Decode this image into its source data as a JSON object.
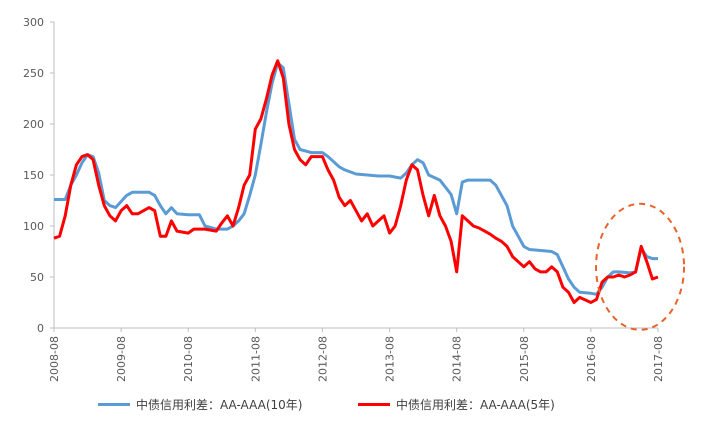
{
  "chart_data": {
    "type": "line",
    "title": "",
    "xlabel": "",
    "ylabel": "",
    "ylim": [
      0,
      300
    ],
    "yticks": [
      0,
      50,
      100,
      150,
      200,
      250,
      300
    ],
    "xlim": [
      "2008-08",
      "2017-08"
    ],
    "xticks": [
      "2008-08",
      "2009-08",
      "2010-08",
      "2011-08",
      "2012-08",
      "2013-08",
      "2014-08",
      "2015-08",
      "2016-08",
      "2017-08"
    ],
    "grid": false,
    "legend_position": "bottom",
    "annotation": "dashed-red-ellipse-around-2016-08-to-2017-08",
    "series": [
      {
        "name": "中债信用利差：AA-AAA(10年)",
        "color": "#5B9BD5",
        "points": [
          [
            "2008-08",
            126
          ],
          [
            "2008-10",
            126
          ],
          [
            "2008-11",
            140
          ],
          [
            "2008-12",
            150
          ],
          [
            "2009-01",
            162
          ],
          [
            "2009-02",
            170
          ],
          [
            "2009-03",
            168
          ],
          [
            "2009-04",
            152
          ],
          [
            "2009-05",
            125
          ],
          [
            "2009-06",
            120
          ],
          [
            "2009-07",
            118
          ],
          [
            "2009-08",
            124
          ],
          [
            "2009-09",
            130
          ],
          [
            "2009-10",
            133
          ],
          [
            "2009-11",
            133
          ],
          [
            "2010-01",
            133
          ],
          [
            "2010-02",
            130
          ],
          [
            "2010-03",
            120
          ],
          [
            "2010-04",
            112
          ],
          [
            "2010-05",
            118
          ],
          [
            "2010-06",
            112
          ],
          [
            "2010-08",
            111
          ],
          [
            "2010-10",
            111
          ],
          [
            "2010-11",
            100
          ],
          [
            "2011-01",
            97
          ],
          [
            "2011-03",
            97
          ],
          [
            "2011-04",
            100
          ],
          [
            "2011-05",
            105
          ],
          [
            "2011-06",
            112
          ],
          [
            "2011-07",
            130
          ],
          [
            "2011-08",
            150
          ],
          [
            "2011-09",
            180
          ],
          [
            "2011-10",
            212
          ],
          [
            "2011-11",
            240
          ],
          [
            "2011-12",
            260
          ],
          [
            "2012-01",
            255
          ],
          [
            "2012-02",
            220
          ],
          [
            "2012-03",
            185
          ],
          [
            "2012-04",
            175
          ],
          [
            "2012-06",
            172
          ],
          [
            "2012-08",
            172
          ],
          [
            "2012-09",
            168
          ],
          [
            "2012-10",
            163
          ],
          [
            "2012-11",
            158
          ],
          [
            "2012-12",
            155
          ],
          [
            "2013-02",
            151
          ],
          [
            "2013-04",
            150
          ],
          [
            "2013-06",
            149
          ],
          [
            "2013-08",
            149
          ],
          [
            "2013-10",
            147
          ],
          [
            "2013-11",
            152
          ],
          [
            "2013-12",
            160
          ],
          [
            "2014-01",
            165
          ],
          [
            "2014-02",
            162
          ],
          [
            "2014-03",
            150
          ],
          [
            "2014-05",
            145
          ],
          [
            "2014-07",
            131
          ],
          [
            "2014-08",
            112
          ],
          [
            "2014-09",
            143
          ],
          [
            "2014-10",
            145
          ],
          [
            "2014-12",
            145
          ],
          [
            "2015-02",
            145
          ],
          [
            "2015-03",
            140
          ],
          [
            "2015-05",
            120
          ],
          [
            "2015-06",
            100
          ],
          [
            "2015-07",
            90
          ],
          [
            "2015-08",
            80
          ],
          [
            "2015-09",
            77
          ],
          [
            "2015-11",
            76
          ],
          [
            "2016-01",
            75
          ],
          [
            "2016-02",
            72
          ],
          [
            "2016-03",
            60
          ],
          [
            "2016-04",
            48
          ],
          [
            "2016-05",
            40
          ],
          [
            "2016-06",
            35
          ],
          [
            "2016-08",
            34
          ],
          [
            "2016-09",
            33
          ],
          [
            "2016-10",
            40
          ],
          [
            "2016-11",
            50
          ],
          [
            "2016-12",
            55
          ],
          [
            "2017-01",
            55
          ],
          [
            "2017-03",
            54
          ],
          [
            "2017-04",
            55
          ],
          [
            "2017-05",
            78
          ],
          [
            "2017-06",
            70
          ],
          [
            "2017-07",
            68
          ],
          [
            "2017-08",
            68
          ]
        ]
      },
      {
        "name": "中债信用利差：AA-AAA(5年)",
        "color": "#FF0000",
        "points": [
          [
            "2008-08",
            88
          ],
          [
            "2008-09",
            90
          ],
          [
            "2008-10",
            110
          ],
          [
            "2008-11",
            140
          ],
          [
            "2008-12",
            160
          ],
          [
            "2009-01",
            168
          ],
          [
            "2009-02",
            170
          ],
          [
            "2009-03",
            165
          ],
          [
            "2009-04",
            140
          ],
          [
            "2009-05",
            120
          ],
          [
            "2009-06",
            110
          ],
          [
            "2009-07",
            105
          ],
          [
            "2009-08",
            115
          ],
          [
            "2009-09",
            120
          ],
          [
            "2009-10",
            112
          ],
          [
            "2009-11",
            112
          ],
          [
            "2010-01",
            118
          ],
          [
            "2010-02",
            115
          ],
          [
            "2010-03",
            90
          ],
          [
            "2010-04",
            90
          ],
          [
            "2010-05",
            105
          ],
          [
            "2010-06",
            95
          ],
          [
            "2010-08",
            93
          ],
          [
            "2010-09",
            97
          ],
          [
            "2010-10",
            97
          ],
          [
            "2010-11",
            97
          ],
          [
            "2011-01",
            95
          ],
          [
            "2011-02",
            103
          ],
          [
            "2011-03",
            110
          ],
          [
            "2011-04",
            100
          ],
          [
            "2011-05",
            118
          ],
          [
            "2011-06",
            140
          ],
          [
            "2011-07",
            150
          ],
          [
            "2011-08",
            195
          ],
          [
            "2011-09",
            205
          ],
          [
            "2011-10",
            225
          ],
          [
            "2011-11",
            248
          ],
          [
            "2011-12",
            262
          ],
          [
            "2012-01",
            245
          ],
          [
            "2012-02",
            200
          ],
          [
            "2012-03",
            175
          ],
          [
            "2012-04",
            165
          ],
          [
            "2012-05",
            160
          ],
          [
            "2012-06",
            168
          ],
          [
            "2012-08",
            168
          ],
          [
            "2012-09",
            155
          ],
          [
            "2012-10",
            145
          ],
          [
            "2012-11",
            128
          ],
          [
            "2012-12",
            120
          ],
          [
            "2013-01",
            125
          ],
          [
            "2013-02",
            115
          ],
          [
            "2013-03",
            105
          ],
          [
            "2013-04",
            112
          ],
          [
            "2013-05",
            100
          ],
          [
            "2013-06",
            105
          ],
          [
            "2013-07",
            110
          ],
          [
            "2013-08",
            93
          ],
          [
            "2013-09",
            100
          ],
          [
            "2013-10",
            120
          ],
          [
            "2013-11",
            145
          ],
          [
            "2013-12",
            160
          ],
          [
            "2014-01",
            155
          ],
          [
            "2014-02",
            130
          ],
          [
            "2014-03",
            110
          ],
          [
            "2014-04",
            130
          ],
          [
            "2014-05",
            110
          ],
          [
            "2014-06",
            100
          ],
          [
            "2014-07",
            85
          ],
          [
            "2014-08",
            55
          ],
          [
            "2014-09",
            110
          ],
          [
            "2014-10",
            105
          ],
          [
            "2014-11",
            100
          ],
          [
            "2014-12",
            98
          ],
          [
            "2015-01",
            95
          ],
          [
            "2015-02",
            92
          ],
          [
            "2015-03",
            88
          ],
          [
            "2015-04",
            85
          ],
          [
            "2015-05",
            80
          ],
          [
            "2015-06",
            70
          ],
          [
            "2015-07",
            65
          ],
          [
            "2015-08",
            60
          ],
          [
            "2015-09",
            65
          ],
          [
            "2015-10",
            58
          ],
          [
            "2015-11",
            55
          ],
          [
            "2015-12",
            55
          ],
          [
            "2016-01",
            60
          ],
          [
            "2016-02",
            55
          ],
          [
            "2016-03",
            40
          ],
          [
            "2016-04",
            35
          ],
          [
            "2016-05",
            25
          ],
          [
            "2016-06",
            30
          ],
          [
            "2016-08",
            25
          ],
          [
            "2016-09",
            28
          ],
          [
            "2016-10",
            45
          ],
          [
            "2016-11",
            50
          ],
          [
            "2016-12",
            50
          ],
          [
            "2017-01",
            52
          ],
          [
            "2017-02",
            50
          ],
          [
            "2017-03",
            52
          ],
          [
            "2017-04",
            55
          ],
          [
            "2017-05",
            80
          ],
          [
            "2017-06",
            65
          ],
          [
            "2017-07",
            48
          ],
          [
            "2017-08",
            50
          ]
        ]
      }
    ]
  }
}
